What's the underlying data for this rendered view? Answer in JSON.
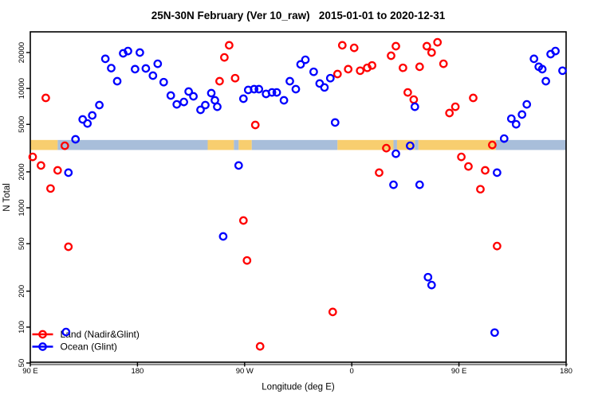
{
  "title": "25N-30N February (Ver 10_raw)   2015-01-01 to 2020-12-31",
  "colors": {
    "land_series": "#FF0000",
    "ocean_series": "#0000FF",
    "band_land": "#F8CE6F",
    "band_ocean": "#A8BEDA",
    "axis": "#000000",
    "axis_shadow": "#8A8A8A",
    "background": "#FFFFFF"
  },
  "legend": {
    "items": [
      {
        "label": "Land (Nadir&Glint)",
        "color": "#FF0000"
      },
      {
        "label": "Ocean (Glint)",
        "color": "#0000FF"
      }
    ]
  },
  "chart_data": {
    "type": "scatter",
    "title": "25N-30N February (Ver 10_raw)  2015-01-01 to 2020-12-31",
    "xlabel": "Longitude (deg E)",
    "ylabel": "N Total",
    "x_axis": {
      "range_deg_east": [
        -270,
        180
      ],
      "ticks": [
        {
          "lon": -270,
          "label": "90 E"
        },
        {
          "lon": -180,
          "label": "180"
        },
        {
          "lon": -90,
          "label": "90 W"
        },
        {
          "lon": 0,
          "label": "0"
        },
        {
          "lon": 90,
          "label": "90 E"
        },
        {
          "lon": 180,
          "label": "180"
        }
      ]
    },
    "y_axis": {
      "scale": "log",
      "range": [
        50,
        20000
      ],
      "ticks": [
        20000,
        10000,
        5000,
        2000,
        1000,
        500,
        200,
        100,
        50
      ]
    },
    "surface_band": {
      "n_top": 3700,
      "n_bottom": 3050,
      "segments": [
        {
          "from": -270,
          "to": -247,
          "type": "land"
        },
        {
          "from": -247,
          "to": -121,
          "type": "ocean"
        },
        {
          "from": -121,
          "to": -99,
          "type": "land"
        },
        {
          "from": -99,
          "to": -95,
          "type": "ocean"
        },
        {
          "from": -95,
          "to": -84,
          "type": "land"
        },
        {
          "from": -84,
          "to": -12,
          "type": "ocean"
        },
        {
          "from": -12,
          "to": 35,
          "type": "land"
        },
        {
          "from": 35,
          "to": 38,
          "type": "ocean"
        },
        {
          "from": 38,
          "to": 53,
          "type": "land"
        },
        {
          "from": 53,
          "to": 56,
          "type": "ocean"
        },
        {
          "from": 56,
          "to": 121,
          "type": "land"
        },
        {
          "from": 121,
          "to": 180,
          "type": "ocean"
        }
      ]
    },
    "series": [
      {
        "name": "Land (Nadir&Glint)",
        "color": "#FF0000",
        "points": [
          [
            -257,
            8330
          ],
          [
            -268,
            2670
          ],
          [
            -261,
            2260
          ],
          [
            -247,
            2060
          ],
          [
            -253,
            1450
          ],
          [
            -241,
            3310
          ],
          [
            -238,
            471
          ],
          [
            -103,
            23000
          ],
          [
            -107,
            18200
          ],
          [
            -111,
            11500
          ],
          [
            -98,
            12200
          ],
          [
            -81,
            4940
          ],
          [
            -91,
            782
          ],
          [
            -88,
            362
          ],
          [
            -77,
            69
          ],
          [
            -16,
            134
          ],
          [
            -8,
            23000
          ],
          [
            2,
            21900
          ],
          [
            -12,
            13200
          ],
          [
            -3,
            14500
          ],
          [
            7,
            14100
          ],
          [
            13,
            14900
          ],
          [
            17,
            15600
          ],
          [
            23,
            1970
          ],
          [
            29,
            3160
          ],
          [
            33,
            18800
          ],
          [
            37,
            22600
          ],
          [
            43,
            14900
          ],
          [
            47,
            9270
          ],
          [
            52,
            8070
          ],
          [
            57,
            15200
          ],
          [
            63,
            22600
          ],
          [
            72,
            24400
          ],
          [
            67,
            20000
          ],
          [
            77,
            16100
          ],
          [
            82,
            6220
          ],
          [
            87,
            7030
          ],
          [
            102,
            8330
          ],
          [
            92,
            2670
          ],
          [
            118,
            3360
          ],
          [
            98,
            2220
          ],
          [
            112,
            2060
          ],
          [
            108,
            1430
          ],
          [
            122,
            478
          ]
        ]
      },
      {
        "name": "Ocean (Glint)",
        "color": "#0000FF",
        "points": [
          [
            -207,
            17700
          ],
          [
            -192,
            19700
          ],
          [
            -188,
            20600
          ],
          [
            -178,
            20000
          ],
          [
            -202,
            14800
          ],
          [
            -182,
            14500
          ],
          [
            -173,
            14700
          ],
          [
            -163,
            16100
          ],
          [
            -167,
            12800
          ],
          [
            -158,
            11300
          ],
          [
            -152,
            8730
          ],
          [
            -147,
            7360
          ],
          [
            -141,
            7710
          ],
          [
            -197,
            11500
          ],
          [
            -212,
            7260
          ],
          [
            -218,
            5940
          ],
          [
            -226,
            5500
          ],
          [
            -222,
            5090
          ],
          [
            -232,
            3750
          ],
          [
            -238,
            1970
          ],
          [
            -240,
            91
          ],
          [
            -137,
            9420
          ],
          [
            -133,
            8590
          ],
          [
            -127,
            6620
          ],
          [
            -123,
            7260
          ],
          [
            -118,
            9140
          ],
          [
            -115,
            7960
          ],
          [
            -113,
            7030
          ],
          [
            -91,
            8210
          ],
          [
            -87,
            9710
          ],
          [
            -82,
            9870
          ],
          [
            -78,
            9870
          ],
          [
            -72,
            9000
          ],
          [
            -67,
            9270
          ],
          [
            -63,
            9270
          ],
          [
            -57,
            7960
          ],
          [
            -52,
            11500
          ],
          [
            -47,
            9870
          ],
          [
            -43,
            15900
          ],
          [
            -39,
            17400
          ],
          [
            -32,
            13800
          ],
          [
            -27,
            11000
          ],
          [
            -23,
            10200
          ],
          [
            -18,
            12200
          ],
          [
            -14,
            5180
          ],
          [
            53,
            7030
          ],
          [
            37,
            2840
          ],
          [
            49,
            3310
          ],
          [
            57,
            1560
          ],
          [
            35,
            1560
          ],
          [
            64,
            262
          ],
          [
            67,
            225
          ],
          [
            122,
            1970
          ],
          [
            120,
            90
          ],
          [
            128,
            3800
          ],
          [
            134,
            5580
          ],
          [
            138,
            5010
          ],
          [
            143,
            6040
          ],
          [
            147,
            7360
          ],
          [
            153,
            17700
          ],
          [
            157,
            15200
          ],
          [
            160,
            14500
          ],
          [
            163,
            11500
          ],
          [
            167,
            19400
          ],
          [
            171,
            20600
          ],
          [
            177,
            14100
          ],
          [
            -95,
            2260
          ],
          [
            -108,
            575
          ]
        ]
      }
    ]
  }
}
